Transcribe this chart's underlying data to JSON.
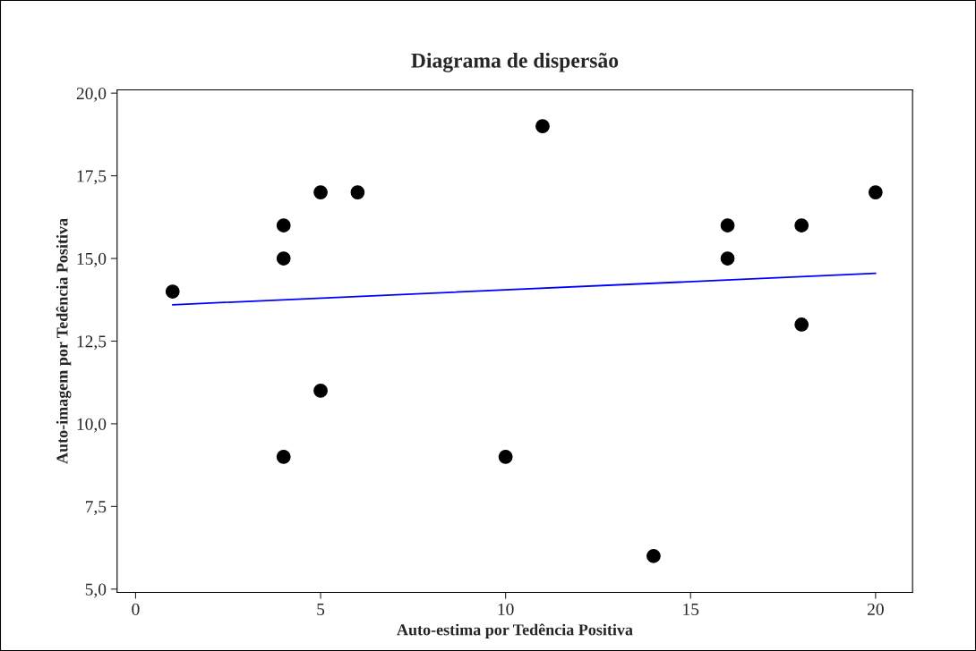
{
  "chart_data": {
    "type": "scatter",
    "title": "Diagrama de dispersão",
    "xlabel": "Auto-estima por Tedência Positiva",
    "ylabel": "Auto-imagem por Tedência Positiva",
    "xlim": [
      -0.5,
      21
    ],
    "ylim": [
      4.9,
      20.1
    ],
    "xticks": [
      0,
      5,
      10,
      15,
      20
    ],
    "yticks": [
      {
        "value": 5,
        "label": "5,0"
      },
      {
        "value": 7.5,
        "label": "7,5"
      },
      {
        "value": 10,
        "label": "10,0"
      },
      {
        "value": 12.5,
        "label": "12,5"
      },
      {
        "value": 15,
        "label": "15,0"
      },
      {
        "value": 17.5,
        "label": "17,5"
      },
      {
        "value": 20,
        "label": "20,0"
      }
    ],
    "grid": false,
    "legend": false,
    "marker": "circle",
    "series": [
      {
        "color": "#000000",
        "x": [
          1,
          4,
          4,
          4,
          5,
          5,
          6,
          10,
          11,
          14,
          16,
          16,
          18,
          18,
          20
        ],
        "values": [
          14,
          16,
          15,
          9,
          17,
          11,
          17,
          9,
          19,
          6,
          16,
          15,
          16,
          13,
          17
        ]
      },
      {
        "type": "line",
        "color": "#0000ff",
        "x": [
          1,
          20
        ],
        "values": [
          13.6,
          14.55
        ],
        "marker": "none",
        "line_style": "solid"
      }
    ]
  }
}
